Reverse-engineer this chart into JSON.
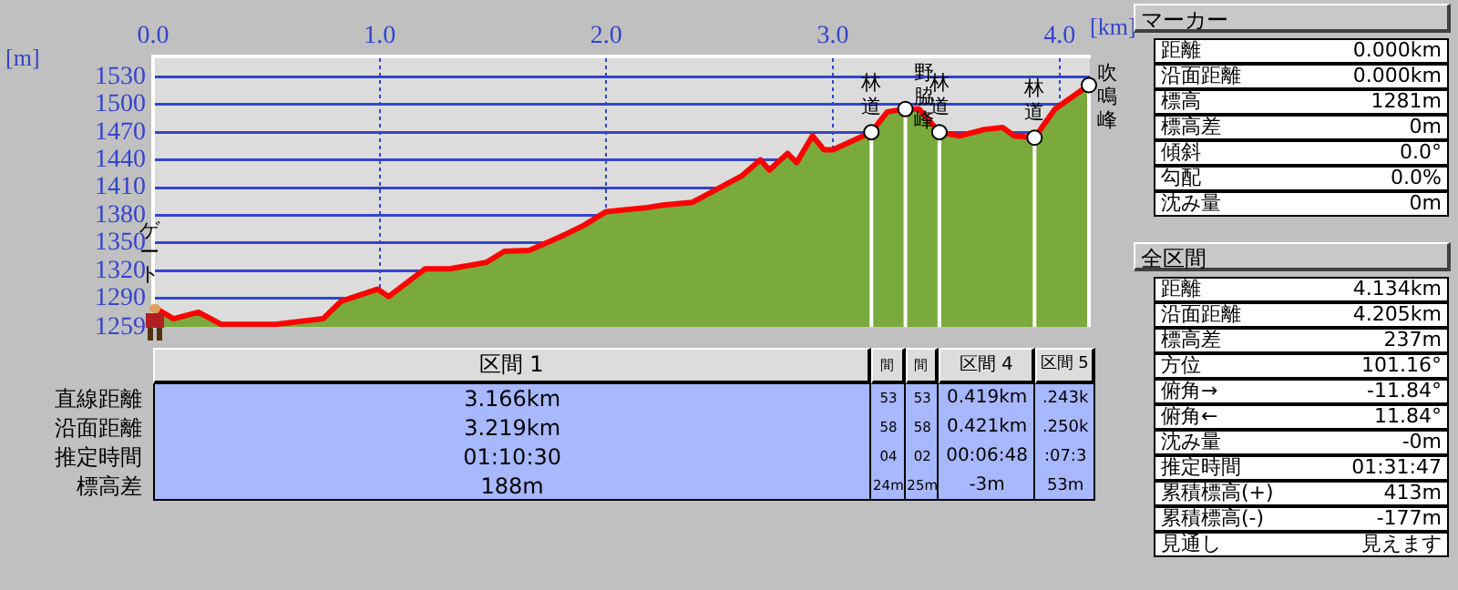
{
  "chart_data": {
    "type": "area",
    "xlabel": "[km]",
    "ylabel": "[m]",
    "x": [
      0,
      0.09,
      0.2,
      0.3,
      0.54,
      0.75,
      0.83,
      0.99,
      1.04,
      1.2,
      1.31,
      1.47,
      1.55,
      1.66,
      1.8,
      1.9,
      2.0,
      2.17,
      2.25,
      2.38,
      2.6,
      2.68,
      2.72,
      2.8,
      2.84,
      2.91,
      2.96,
      3.0,
      3.17,
      3.24,
      3.32,
      3.38,
      3.47,
      3.56,
      3.67,
      3.75,
      3.8,
      3.89,
      3.98,
      4.13
    ],
    "series": [
      {
        "color": "#7aaa3c",
        "values": [
          1281,
          1268,
          1275,
          1262,
          1262,
          1268,
          1287,
          1300,
          1292,
          1322,
          1322,
          1329,
          1341,
          1342,
          1357,
          1369,
          1384,
          1388,
          1391,
          1394,
          1423,
          1440,
          1429,
          1447,
          1437,
          1466,
          1451,
          1451,
          1470,
          1492,
          1495,
          1495,
          1470,
          1466,
          1473,
          1475,
          1466,
          1464,
          1495,
          1521
        ]
      },
      {
        "type": "line",
        "color": "#ff0000",
        "values": [
          1281,
          1268,
          1275,
          1262,
          1262,
          1268,
          1287,
          1300,
          1292,
          1322,
          1322,
          1329,
          1341,
          1342,
          1357,
          1369,
          1384,
          1388,
          1391,
          1394,
          1423,
          1440,
          1429,
          1447,
          1437,
          1466,
          1451,
          1451,
          1470,
          1492,
          1495,
          1495,
          1470,
          1466,
          1473,
          1475,
          1466,
          1464,
          1495,
          1521
        ]
      }
    ],
    "xlim": [
      0,
      4.134
    ],
    "ylim": [
      1259,
      1552
    ],
    "xticks": [
      {
        "value": 0,
        "label": "0.0"
      },
      {
        "value": 1,
        "label": "1.0"
      },
      {
        "value": 2,
        "label": "2.0"
      },
      {
        "value": 3,
        "label": "3.0"
      },
      {
        "value": 4,
        "label": "4.0"
      }
    ],
    "yticks": [
      1259,
      1290,
      1320,
      1350,
      1380,
      1410,
      1440,
      1470,
      1500,
      1530
    ],
    "grid": true,
    "legend": false,
    "ref_lines": [
      {
        "axis": "x",
        "value": 3.17,
        "label": "林道",
        "color": "#ffffff"
      },
      {
        "axis": "x",
        "value": 3.32,
        "label": "野脇峰",
        "color": "#ffffff"
      },
      {
        "axis": "x",
        "value": 3.47,
        "label": "林道",
        "color": "#ffffff"
      },
      {
        "axis": "x",
        "value": 3.89,
        "label": "林道",
        "color": "#ffffff"
      },
      {
        "axis": "x",
        "value": 4.13,
        "label": "吹鳴峰",
        "color": "#ffffff"
      }
    ],
    "annotations": [
      "ゲート",
      "区間 1\t3.166km\t3.219km\t01:10:30\t188m",
      "間\t53\t58\t04\t24m",
      "間\t53\t58\t02\t25m",
      "区間 4\t0.419km\t0.421km\t00:06:48\t-3m",
      "区間 5\t.243k\t.250k\t:07:3\t53m",
      "直線距離",
      "沿面距離",
      "推定時間",
      "標高差",
      "マーカー",
      "距離\t0.000km",
      "沿面距離\t0.000km",
      "標高\t1281m",
      "標高差\t0m",
      "傾斜\t0.0°",
      "勾配\t0.0%",
      "沈み量\t0m",
      "全区間",
      "距離\t4.134km",
      "沿面距離\t4.205km",
      "標高差\t237m",
      "方位\t101.16°",
      "俯角→\t-11.84°",
      "俯角←\t11.84°",
      "沈み量\t-0m",
      "推定時間\t01:31:47",
      "累積標高(+)\t413m",
      "累積標高(-)\t-177m",
      "見通し\t見えます"
    ]
  }
}
